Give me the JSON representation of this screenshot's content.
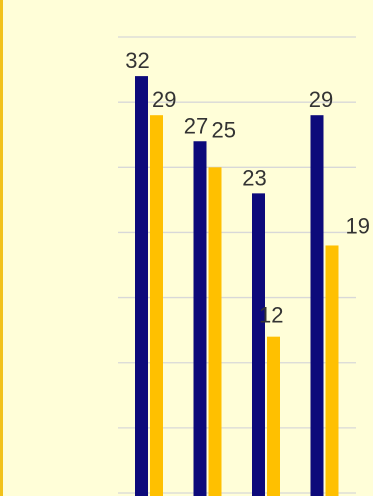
{
  "chart_data": {
    "type": "bar",
    "categories": [
      "",
      "",
      "",
      ""
    ],
    "series": [
      {
        "values": [
          32,
          27,
          23,
          29
        ]
      },
      {
        "values": [
          29,
          25,
          12,
          19
        ]
      }
    ],
    "ylim": [
      0,
      36
    ],
    "grid": true,
    "title": "",
    "xlabel": "",
    "ylabel": ""
  },
  "colors": {
    "series_1": "#0d0a7a",
    "series_2": "#ffc000",
    "gridline": "#d8d8d8",
    "background": "#fffed8",
    "left_border": "#f2c21a",
    "label_text": "#333333"
  }
}
